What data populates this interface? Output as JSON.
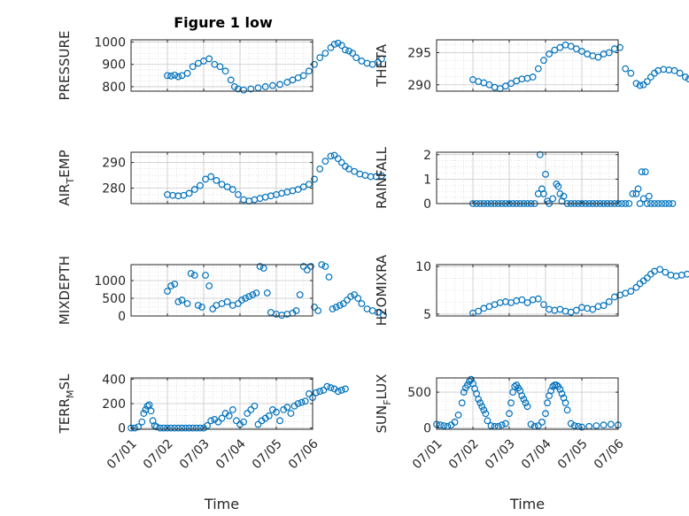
{
  "chart_data": [
    {
      "type": "scatter",
      "title": "Figure 1 low",
      "ylabel": "PRESSURE",
      "xlabel": "",
      "xlim": [
        "07/02",
        "07/06"
      ],
      "ylim": [
        780,
        1010
      ],
      "yticks": [
        800,
        900,
        1000
      ],
      "xticks": [],
      "grid": true,
      "series": [
        {
          "x": [
            0.0,
            0.1,
            0.2,
            0.3,
            0.4,
            0.55,
            0.7,
            0.85,
            1.0,
            1.15,
            1.3,
            1.45,
            1.6,
            1.75,
            1.85,
            1.95,
            2.1,
            2.3,
            2.5,
            2.7,
            2.9,
            3.1,
            3.3,
            3.45,
            3.6,
            3.75,
            3.9,
            4.05,
            4.2,
            4.35,
            4.5,
            4.6,
            4.7,
            4.8,
            4.9,
            5.0,
            5.1,
            5.2,
            5.35,
            5.5,
            5.65,
            5.8,
            5.9
          ],
          "y": [
            850,
            848,
            852,
            845,
            850,
            860,
            890,
            905,
            915,
            925,
            900,
            890,
            870,
            830,
            800,
            790,
            785,
            790,
            795,
            800,
            805,
            810,
            820,
            830,
            840,
            850,
            870,
            900,
            930,
            950,
            975,
            990,
            995,
            985,
            965,
            960,
            950,
            930,
            915,
            905,
            900,
            910,
            925
          ]
        }
      ]
    },
    {
      "type": "scatter",
      "title": "",
      "ylabel": "THETA",
      "xlabel": "",
      "xlim": [
        "07/02",
        "07/06"
      ],
      "ylim": [
        289,
        297
      ],
      "yticks": [
        290,
        295
      ],
      "xticks": [],
      "grid": true,
      "series": [
        {
          "x": [
            0.0,
            0.15,
            0.3,
            0.45,
            0.6,
            0.75,
            0.9,
            1.05,
            1.2,
            1.35,
            1.5,
            1.65,
            1.8,
            1.95,
            2.1,
            2.25,
            2.4,
            2.55,
            2.7,
            2.85,
            3.0,
            3.15,
            3.3,
            3.45,
            3.6,
            3.75,
            3.9,
            4.05,
            4.2,
            4.35,
            4.5,
            4.6,
            4.7,
            4.8,
            4.9,
            5.0,
            5.1,
            5.25,
            5.4,
            5.55,
            5.7,
            5.85,
            5.95
          ],
          "y": [
            290.8,
            290.5,
            290.3,
            290.0,
            289.6,
            289.4,
            289.8,
            290.2,
            290.6,
            290.9,
            291.0,
            291.2,
            292.5,
            293.8,
            294.8,
            295.4,
            295.8,
            296.2,
            296.0,
            295.6,
            295.2,
            294.8,
            294.5,
            294.3,
            294.8,
            295.0,
            295.6,
            295.8,
            292.5,
            291.8,
            290.2,
            289.9,
            290.0,
            290.5,
            291.2,
            291.8,
            292.2,
            292.4,
            292.3,
            292.2,
            291.8,
            291.2,
            290.9
          ]
        }
      ]
    },
    {
      "type": "scatter",
      "title": "",
      "ylabel": "AIR_TEMP",
      "xlabel": "",
      "xlim": [
        "07/02",
        "07/06"
      ],
      "ylim": [
        274,
        294
      ],
      "yticks": [
        280,
        290
      ],
      "xticks": [],
      "grid": true,
      "series": [
        {
          "x": [
            0.0,
            0.15,
            0.3,
            0.45,
            0.6,
            0.75,
            0.9,
            1.05,
            1.2,
            1.35,
            1.5,
            1.65,
            1.8,
            1.95,
            2.1,
            2.25,
            2.4,
            2.55,
            2.7,
            2.85,
            3.0,
            3.15,
            3.3,
            3.45,
            3.6,
            3.75,
            3.9,
            4.05,
            4.2,
            4.35,
            4.5,
            4.6,
            4.7,
            4.8,
            4.9,
            5.0,
            5.15,
            5.3,
            5.45,
            5.6,
            5.75,
            5.9
          ],
          "y": [
            277.5,
            277.2,
            277.0,
            277.2,
            278.0,
            279.5,
            281.0,
            283.5,
            284.5,
            283.0,
            281.5,
            280.5,
            279.5,
            277.5,
            275.5,
            275.0,
            275.5,
            276.0,
            276.5,
            277.0,
            277.5,
            278.0,
            278.5,
            279.0,
            279.5,
            280.5,
            281.5,
            283.5,
            287.5,
            290.5,
            292.5,
            292.8,
            291.5,
            290.0,
            288.5,
            287.5,
            286.5,
            285.5,
            285.0,
            284.5,
            284.5,
            284.8
          ]
        }
      ]
    },
    {
      "type": "scatter",
      "title": "",
      "ylabel": "RAINFALL",
      "xlabel": "",
      "xlim": [
        "07/02",
        "07/06"
      ],
      "ylim": [
        0,
        2.1
      ],
      "yticks": [
        0,
        1,
        2
      ],
      "xticks": [],
      "grid": true,
      "series": [
        {
          "x": [
            0.0,
            0.1,
            0.2,
            0.3,
            0.4,
            0.5,
            0.6,
            0.7,
            0.8,
            0.9,
            1.0,
            1.1,
            1.2,
            1.3,
            1.4,
            1.5,
            1.6,
            1.7,
            1.8,
            1.85,
            1.9,
            1.95,
            2.0,
            2.05,
            2.1,
            2.2,
            2.3,
            2.35,
            2.4,
            2.45,
            2.5,
            2.6,
            2.7,
            2.8,
            2.9,
            3.0,
            3.1,
            3.2,
            3.3,
            3.4,
            3.5,
            3.6,
            3.7,
            3.8,
            3.9,
            4.0,
            4.1,
            4.2,
            4.3,
            4.4,
            4.5,
            4.55,
            4.6,
            4.65,
            4.7,
            4.75,
            4.8,
            4.85,
            4.9,
            5.0,
            5.1,
            5.2,
            5.3,
            5.4,
            5.5
          ],
          "y": [
            0,
            0,
            0,
            0,
            0,
            0,
            0,
            0,
            0,
            0,
            0,
            0,
            0,
            0,
            0,
            0,
            0,
            0,
            0.4,
            2.0,
            0.6,
            0.4,
            1.2,
            0.1,
            0,
            0.2,
            0.8,
            0.7,
            0.4,
            0.1,
            0.3,
            0,
            0,
            0,
            0,
            0,
            0,
            0,
            0,
            0,
            0,
            0,
            0,
            0,
            0,
            0,
            0,
            0,
            0,
            0.4,
            0.4,
            0.6,
            0,
            1.3,
            0.2,
            1.3,
            0,
            0.3,
            0,
            0,
            0,
            0,
            0,
            0,
            0
          ]
        }
      ]
    },
    {
      "type": "scatter",
      "title": "",
      "ylabel": "MIXDEPTH",
      "xlabel": "",
      "xlim": [
        "07/02",
        "07/06"
      ],
      "ylim": [
        0,
        1450
      ],
      "yticks": [
        0,
        500,
        1000
      ],
      "xticks": [],
      "grid": true,
      "series": [
        {
          "x": [
            0.0,
            0.1,
            0.2,
            0.3,
            0.4,
            0.55,
            0.65,
            0.75,
            0.85,
            0.95,
            1.05,
            1.15,
            1.25,
            1.35,
            1.5,
            1.65,
            1.8,
            1.95,
            2.05,
            2.15,
            2.25,
            2.35,
            2.45,
            2.55,
            2.65,
            2.75,
            2.85,
            3.0,
            3.15,
            3.3,
            3.45,
            3.55,
            3.65,
            3.75,
            3.85,
            3.95,
            4.05,
            4.15,
            4.25,
            4.35,
            4.45,
            4.55,
            4.65,
            4.75,
            4.85,
            4.95,
            5.05,
            5.15,
            5.25,
            5.35,
            5.5,
            5.65,
            5.8,
            5.95
          ],
          "y": [
            700,
            850,
            900,
            400,
            450,
            350,
            1200,
            1150,
            300,
            250,
            1150,
            850,
            200,
            300,
            350,
            400,
            300,
            350,
            450,
            500,
            550,
            600,
            650,
            1400,
            1350,
            650,
            100,
            50,
            20,
            50,
            80,
            150,
            600,
            1400,
            1300,
            1400,
            250,
            150,
            1450,
            1400,
            1100,
            200,
            250,
            300,
            350,
            450,
            550,
            600,
            500,
            350,
            200,
            150,
            100,
            20
          ]
        }
      ]
    },
    {
      "type": "scatter",
      "title": "",
      "ylabel": "H2OMIXRA",
      "xlabel": "",
      "xlim": [
        "07/02",
        "07/06"
      ],
      "ylim": [
        4.8,
        10.2
      ],
      "yticks": [
        5,
        10
      ],
      "xticks": [],
      "grid": true,
      "series": [
        {
          "x": [
            0.0,
            0.15,
            0.3,
            0.45,
            0.6,
            0.75,
            0.9,
            1.05,
            1.2,
            1.35,
            1.5,
            1.65,
            1.8,
            1.95,
            2.1,
            2.25,
            2.4,
            2.55,
            2.7,
            2.85,
            3.0,
            3.15,
            3.3,
            3.45,
            3.6,
            3.75,
            3.9,
            4.05,
            4.2,
            4.35,
            4.5,
            4.6,
            4.7,
            4.8,
            4.9,
            5.0,
            5.15,
            5.3,
            5.45,
            5.6,
            5.75,
            5.9
          ],
          "y": [
            5.1,
            5.3,
            5.6,
            5.8,
            6.0,
            6.2,
            6.3,
            6.2,
            6.4,
            6.5,
            6.2,
            6.5,
            6.6,
            6.0,
            5.5,
            5.4,
            5.5,
            5.3,
            5.2,
            5.4,
            5.7,
            5.6,
            5.5,
            5.8,
            5.9,
            6.3,
            6.8,
            7.0,
            7.2,
            7.4,
            7.8,
            8.2,
            8.5,
            8.8,
            9.2,
            9.5,
            9.7,
            9.4,
            9.1,
            9.0,
            9.1,
            9.2
          ]
        }
      ]
    },
    {
      "type": "scatter",
      "title": "",
      "ylabel": "TERR_MSL",
      "xlabel": "Time",
      "xlim": [
        "07/01",
        "07/06"
      ],
      "ylim": [
        -10,
        410
      ],
      "yticks": [
        0,
        200,
        400
      ],
      "xticks": [
        "07/01",
        "07/02",
        "07/03",
        "07/04",
        "07/05",
        "07/06"
      ],
      "grid": true,
      "series": [
        {
          "x": [
            0.0,
            0.1,
            0.2,
            0.3,
            0.35,
            0.4,
            0.45,
            0.5,
            0.55,
            0.6,
            0.65,
            0.7,
            0.8,
            0.9,
            1.0,
            1.1,
            1.2,
            1.3,
            1.4,
            1.5,
            1.6,
            1.7,
            1.8,
            1.9,
            2.0,
            2.1,
            2.2,
            2.3,
            2.4,
            2.5,
            2.6,
            2.7,
            2.8,
            2.9,
            3.0,
            3.1,
            3.2,
            3.3,
            3.4,
            3.5,
            3.6,
            3.7,
            3.8,
            3.9,
            4.0,
            4.1,
            4.2,
            4.3,
            4.4,
            4.5,
            4.6,
            4.7,
            4.8,
            4.9,
            5.0,
            5.1,
            5.2,
            5.3,
            5.4,
            5.5,
            5.6,
            5.7,
            5.8,
            5.9
          ],
          "y": [
            0,
            0,
            10,
            50,
            120,
            150,
            180,
            190,
            140,
            60,
            20,
            10,
            0,
            0,
            0,
            0,
            0,
            0,
            0,
            0,
            0,
            0,
            0,
            0,
            0,
            20,
            60,
            70,
            50,
            80,
            120,
            100,
            150,
            60,
            30,
            50,
            120,
            150,
            180,
            30,
            60,
            80,
            100,
            150,
            130,
            60,
            150,
            170,
            120,
            180,
            200,
            210,
            220,
            280,
            250,
            290,
            300,
            310,
            340,
            330,
            320,
            300,
            310,
            320
          ]
        }
      ]
    },
    {
      "type": "scatter",
      "title": "",
      "ylabel": "SUN_FLUX",
      "xlabel": "Time",
      "xlim": [
        "07/01",
        "07/06"
      ],
      "ylim": [
        -20,
        700
      ],
      "yticks": [
        0,
        500
      ],
      "xticks": [
        "07/01",
        "07/02",
        "07/03",
        "07/04",
        "07/05",
        "07/06"
      ],
      "grid": true,
      "series": [
        {
          "x": [
            0.0,
            0.1,
            0.2,
            0.3,
            0.4,
            0.5,
            0.6,
            0.7,
            0.75,
            0.8,
            0.85,
            0.9,
            0.95,
            1.0,
            1.05,
            1.1,
            1.15,
            1.2,
            1.25,
            1.3,
            1.35,
            1.4,
            1.5,
            1.6,
            1.7,
            1.8,
            1.9,
            2.0,
            2.05,
            2.1,
            2.15,
            2.2,
            2.25,
            2.3,
            2.35,
            2.4,
            2.45,
            2.5,
            2.6,
            2.7,
            2.8,
            2.9,
            3.0,
            3.05,
            3.1,
            3.15,
            3.2,
            3.25,
            3.3,
            3.35,
            3.4,
            3.45,
            3.5,
            3.55,
            3.6,
            3.7,
            3.8,
            3.9,
            4.0,
            4.2,
            4.4,
            4.6,
            4.8,
            5.0
          ],
          "y": [
            50,
            40,
            30,
            20,
            40,
            80,
            180,
            350,
            500,
            560,
            600,
            650,
            680,
            620,
            550,
            480,
            400,
            350,
            300,
            250,
            200,
            100,
            30,
            20,
            20,
            40,
            60,
            200,
            350,
            500,
            580,
            600,
            560,
            520,
            450,
            400,
            350,
            300,
            50,
            20,
            30,
            80,
            200,
            350,
            450,
            520,
            580,
            600,
            600,
            580,
            540,
            480,
            420,
            350,
            250,
            60,
            30,
            20,
            10,
            20,
            30,
            40,
            50,
            40
          ]
        }
      ]
    }
  ]
}
